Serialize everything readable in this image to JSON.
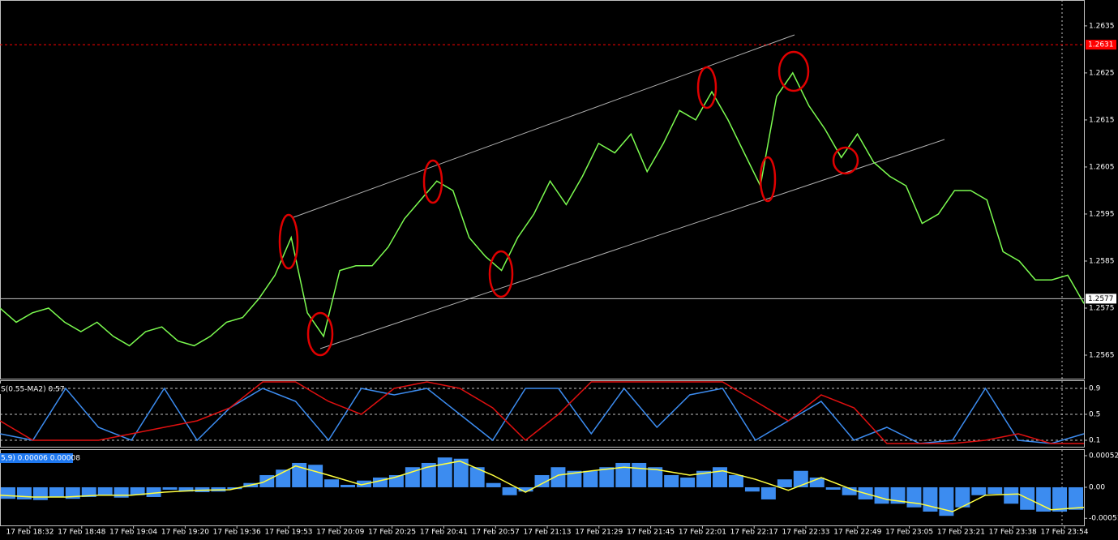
{
  "chart_data": [
    {
      "type": "line",
      "name": "price",
      "color": "#7cfc50",
      "values": [
        1.2575,
        1.2572,
        1.2574,
        1.2575,
        1.2572,
        1.257,
        1.2572,
        1.2569,
        1.2567,
        1.257,
        1.2571,
        1.2568,
        1.2567,
        1.2569,
        1.2572,
        1.2573,
        1.2577,
        1.2582,
        1.259,
        1.2574,
        1.2569,
        1.2583,
        1.2584,
        1.2584,
        1.2588,
        1.2594,
        1.2598,
        1.2602,
        1.26,
        1.259,
        1.2586,
        1.2583,
        1.259,
        1.2595,
        1.2602,
        1.2597,
        1.2603,
        1.261,
        1.2608,
        1.2612,
        1.2604,
        1.261,
        1.2617,
        1.2615,
        1.2621,
        1.2615,
        1.2608,
        1.2601,
        1.262,
        1.2625,
        1.2618,
        1.2613,
        1.2607,
        1.2612,
        1.2606,
        1.2603,
        1.2601,
        1.2593,
        1.2595,
        1.26,
        1.26,
        1.2598,
        1.2587,
        1.2585,
        1.2581,
        1.2581,
        1.2582,
        1.2576
      ],
      "ylim": [
        1.256,
        1.26405
      ],
      "yticks": [
        1.2635,
        1.2625,
        1.2615,
        1.2605,
        1.2595,
        1.2585,
        1.2575,
        1.2565
      ],
      "levels": [
        {
          "value": 1.2631,
          "color": "#ff0000"
        },
        {
          "value": 1.2577,
          "color": "#c0c0c0"
        }
      ]
    },
    {
      "type": "line",
      "title": "S(0.55-MA2) 0.57",
      "ylim": [
        0,
        1.0125
      ],
      "yticks": [
        0.9,
        0.5,
        0.1
      ],
      "grid": true,
      "series": [
        {
          "color": "#3c8cf0",
          "values": [
            0.2,
            0.1,
            0.9,
            0.3,
            0.1,
            0.9,
            0.1,
            0.6,
            0.9,
            0.7,
            0.1,
            0.9,
            0.8,
            0.9,
            0.5,
            0.1,
            0.9,
            0.9,
            0.2,
            0.9,
            0.3,
            0.8,
            0.9,
            0.1,
            0.4,
            0.7,
            0.1,
            0.3,
            0.05,
            0.1,
            0.9,
            0.1,
            0.05,
            0.2
          ]
        },
        {
          "color": "#e01010",
          "values": [
            0.4,
            0.1,
            0.1,
            0.1,
            0.2,
            0.3,
            0.4,
            0.6,
            1.0,
            1.0,
            0.7,
            0.5,
            0.9,
            1.0,
            0.9,
            0.6,
            0.1,
            0.5,
            1.0,
            1.0,
            1.0,
            1.0,
            1.0,
            0.7,
            0.4,
            0.8,
            0.6,
            0.05,
            0.05,
            0.05,
            0.1,
            0.2,
            0.05,
            0.05
          ]
        }
      ]
    },
    {
      "type": "bar",
      "title": "5,9) 0.00006 0.00008",
      "ylim": [
        -0.000627,
        0.000613
      ],
      "yticks": [
        0.00052,
        {
          "value": 0,
          "label": "0.00"
        },
        -0.00051
      ],
      "color": "#3c8cf0",
      "values": [
        -0.00019,
        -0.0002,
        -0.00021,
        -0.00016,
        -0.00019,
        -0.00016,
        -0.00013,
        -0.00017,
        -0.00013,
        -0.00016,
        -4e-05,
        -7e-05,
        -8e-05,
        -7e-05,
        -3e-05,
        7e-05,
        0.0002,
        0.00029,
        0.0004,
        0.00037,
        0.00013,
        4e-05,
        0.00011,
        0.00016,
        0.0002,
        0.00033,
        0.0004,
        0.00049,
        0.00047,
        0.00033,
        7e-05,
        -0.00013,
        -7e-05,
        0.0002,
        0.00033,
        0.00027,
        0.00027,
        0.00033,
        0.0004,
        0.0004,
        0.00033,
        0.0002,
        0.00016,
        0.00027,
        0.00033,
        0.0002,
        -7e-05,
        -0.0002,
        0.00013,
        0.00027,
        0.00016,
        -4e-05,
        -0.00013,
        -0.0002,
        -0.00027,
        -0.00027,
        -0.00033,
        -0.0004,
        -0.00047,
        -0.00033,
        -0.00013,
        -0.00011,
        -0.00027,
        -0.00037,
        -0.0004,
        -0.0004,
        -0.00037
      ],
      "signal": {
        "color": "#ffff40",
        "values": [
          -0.00013,
          -0.00016,
          -0.00016,
          -0.00013,
          -0.00013,
          -8e-05,
          -5e-05,
          -4e-05,
          8e-05,
          0.00035,
          0.0002,
          4e-05,
          0.00016,
          0.00033,
          0.00043,
          0.0002,
          -8e-05,
          0.0002,
          0.00027,
          0.00033,
          0.00029,
          0.0002,
          0.00027,
          0.00013,
          -5e-05,
          0.00016,
          -5e-05,
          -0.0002,
          -0.00027,
          -0.0004,
          -0.00013,
          -0.00011,
          -0.00037,
          -0.00033
        ]
      },
      "xtick_labels": [
        "17 Feb 18:32",
        "17 Feb 18:48",
        "17 Feb 19:04",
        "17 Feb 19:20",
        "17 Feb 19:36",
        "17 Feb 19:53",
        "17 Feb 20:09",
        "17 Feb 20:25",
        "17 Feb 20:41",
        "17 Feb 20:57",
        "17 Feb 21:13",
        "17 Feb 21:29",
        "17 Feb 21:45",
        "17 Feb 22:01",
        "17 Feb 22:17",
        "17 Feb 22:33",
        "17 Feb 22:49",
        "17 Feb 23:05",
        "17 Feb 23:21",
        "17 Feb 23:38",
        "17 Feb 23:54"
      ]
    }
  ]
}
